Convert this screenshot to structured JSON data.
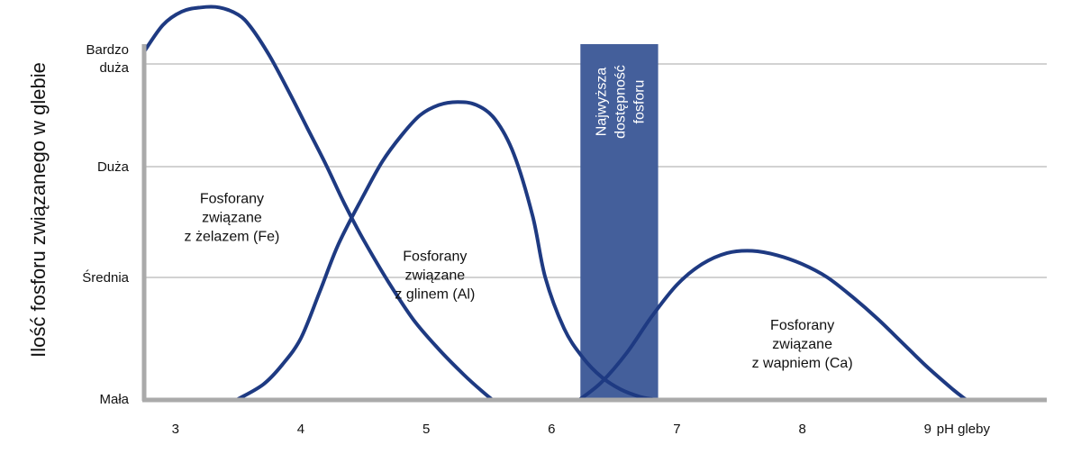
{
  "chart_data": {
    "type": "line",
    "ylabel": "Ilość fosforu związanego w glebie",
    "xlabel": "pH gleby",
    "x_ticks": [
      "3",
      "4",
      "5",
      "6",
      "7",
      "8",
      "9"
    ],
    "xlim": [
      2.75,
      9.95
    ],
    "y_levels": [
      "Mała",
      "Średnia",
      "Duża",
      "Bardzo duża"
    ],
    "y_levels_lines": [
      [
        "Mała"
      ],
      [
        "Średnia"
      ],
      [
        "Duża"
      ],
      [
        "Bardzo",
        "duża"
      ]
    ],
    "ylim": [
      0,
      3.6
    ],
    "grid": true,
    "series": [
      {
        "name": "Fosforany związane z żelazem (Fe)",
        "label_lines": [
          "Fosforany",
          "związane",
          "z żelazem (Fe)"
        ],
        "label_at": [
          3.45,
          1.55
        ],
        "points": [
          [
            2.75,
            3.12
          ],
          [
            2.9,
            3.38
          ],
          [
            3.05,
            3.51
          ],
          [
            3.2,
            3.55
          ],
          [
            3.35,
            3.55
          ],
          [
            3.5,
            3.48
          ],
          [
            3.6,
            3.36
          ],
          [
            3.75,
            3.08
          ],
          [
            3.9,
            2.74
          ],
          [
            4.05,
            2.38
          ],
          [
            4.2,
            2.02
          ],
          [
            4.35,
            1.66
          ],
          [
            4.5,
            1.34
          ],
          [
            4.7,
            0.96
          ],
          [
            4.9,
            0.65
          ],
          [
            5.1,
            0.41
          ],
          [
            5.3,
            0.2
          ],
          [
            5.45,
            0.06
          ],
          [
            5.52,
            0.0
          ]
        ]
      },
      {
        "name": "Fosforany związane z glinem (Al)",
        "label_lines": [
          "Fosforany",
          "związane",
          "z glinem (Al)"
        ],
        "label_at": [
          5.07,
          1.03
        ],
        "points": [
          [
            3.5,
            0.0
          ],
          [
            3.7,
            0.12
          ],
          [
            3.85,
            0.28
          ],
          [
            4.0,
            0.5
          ],
          [
            4.15,
            0.88
          ],
          [
            4.3,
            1.3
          ],
          [
            4.5,
            1.74
          ],
          [
            4.65,
            2.05
          ],
          [
            4.8,
            2.3
          ],
          [
            4.95,
            2.5
          ],
          [
            5.1,
            2.6
          ],
          [
            5.25,
            2.63
          ],
          [
            5.4,
            2.6
          ],
          [
            5.55,
            2.46
          ],
          [
            5.7,
            2.12
          ],
          [
            5.85,
            1.55
          ],
          [
            5.95,
            1.0
          ],
          [
            6.1,
            0.58
          ],
          [
            6.25,
            0.34
          ],
          [
            6.4,
            0.18
          ],
          [
            6.55,
            0.08
          ],
          [
            6.7,
            0.02
          ],
          [
            6.8,
            0.0
          ]
        ]
      },
      {
        "name": "Fosforany związane z wapniem (Ca)",
        "label_lines": [
          "Fosforany",
          "związane",
          "z wapniem (Ca)"
        ],
        "label_at": [
          8.0,
          0.46
        ],
        "points": [
          [
            6.23,
            0.0
          ],
          [
            6.4,
            0.14
          ],
          [
            6.6,
            0.38
          ],
          [
            6.8,
            0.68
          ],
          [
            7.0,
            0.94
          ],
          [
            7.2,
            1.12
          ],
          [
            7.4,
            1.22
          ],
          [
            7.6,
            1.24
          ],
          [
            7.8,
            1.2
          ],
          [
            8.0,
            1.12
          ],
          [
            8.2,
            1.0
          ],
          [
            8.4,
            0.84
          ],
          [
            8.6,
            0.66
          ],
          [
            8.8,
            0.46
          ],
          [
            9.0,
            0.26
          ],
          [
            9.2,
            0.08
          ],
          [
            9.3,
            0.0
          ]
        ]
      }
    ],
    "highlight_band": {
      "x_range": [
        6.23,
        6.85
      ],
      "label_lines": [
        "Najwyższa",
        "dostępność",
        "fosforu"
      ]
    }
  },
  "colors": {
    "line": "#1e3a82",
    "band": "#445f9b",
    "grid": "#b8b8b8",
    "axis": "#aaaaaa",
    "text": "#111111"
  }
}
